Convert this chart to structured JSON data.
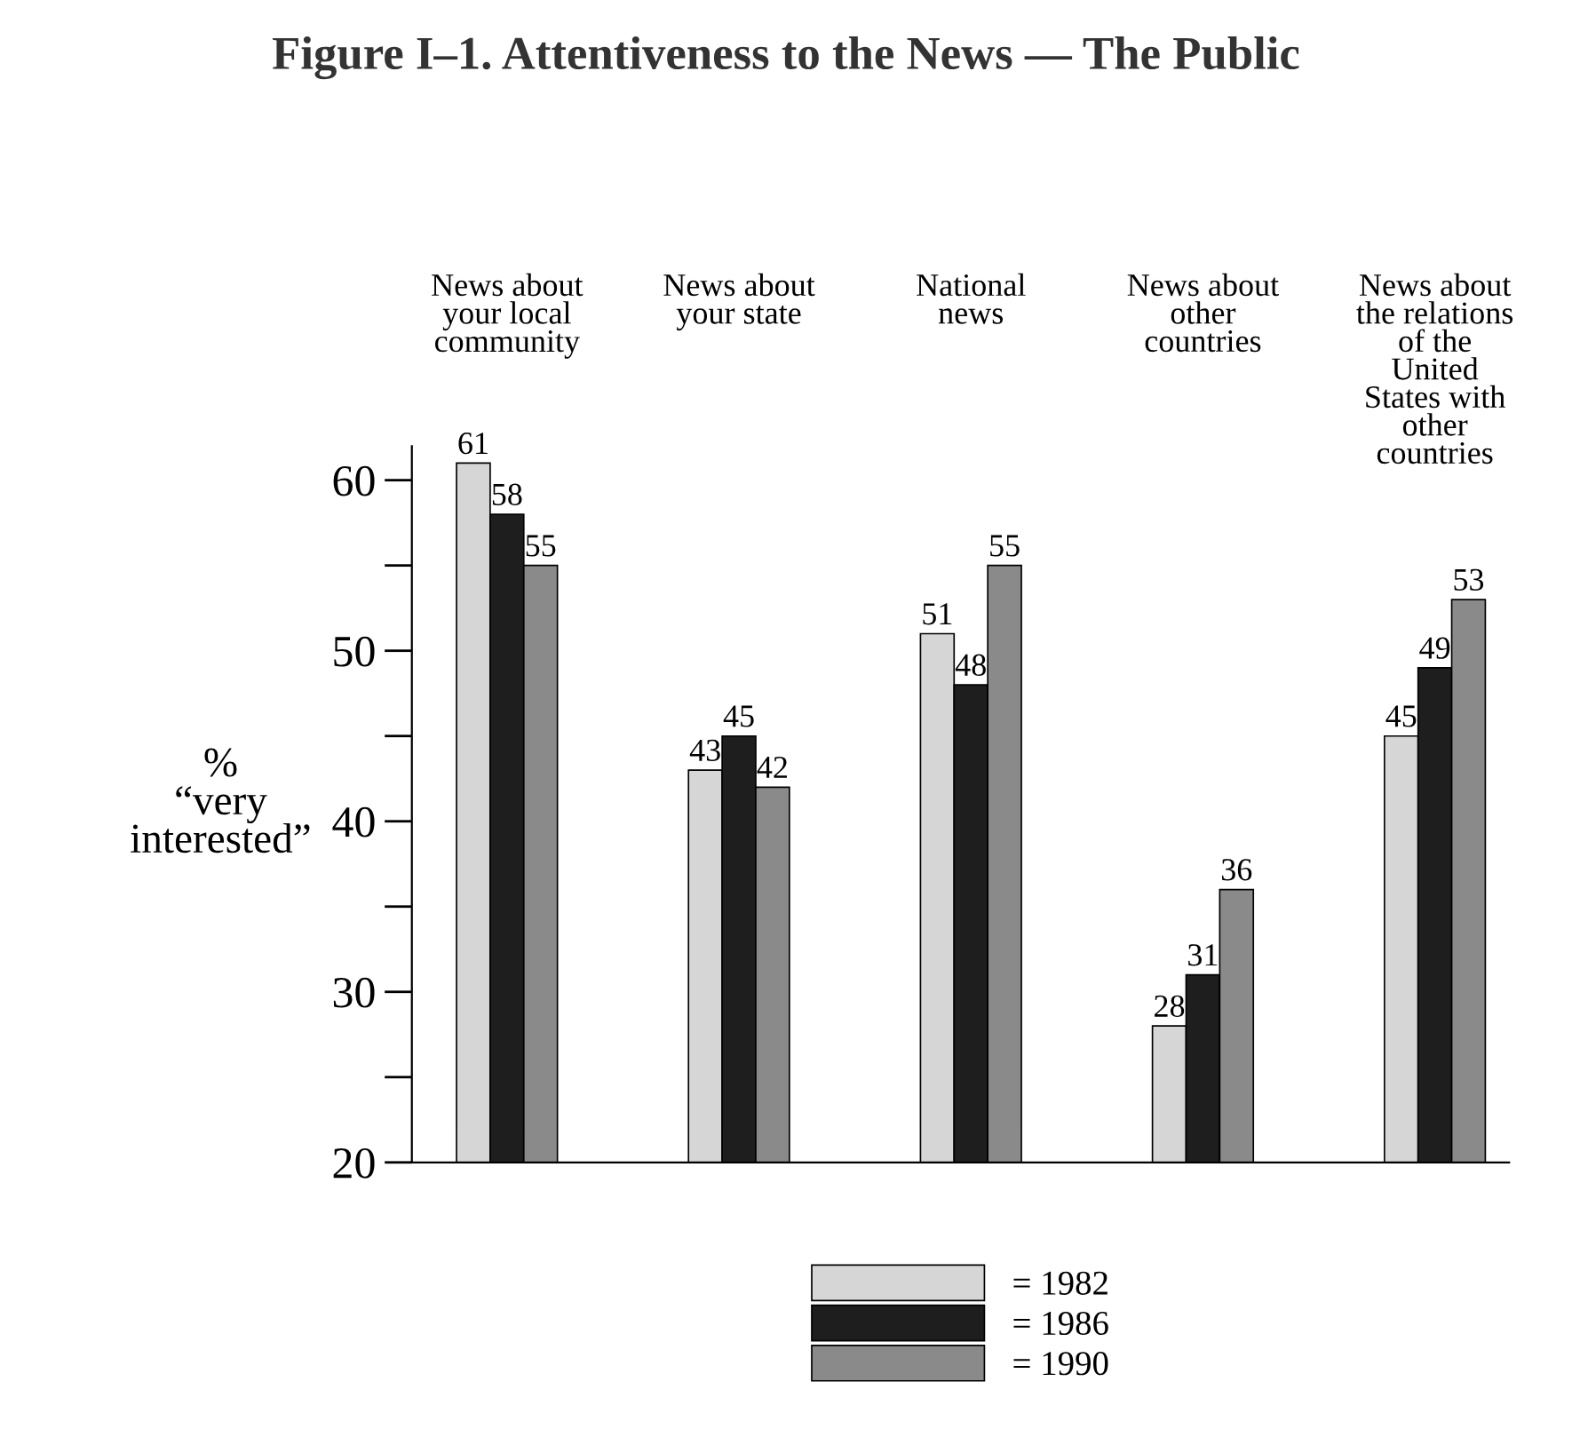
{
  "chart_data": {
    "type": "bar",
    "title": "Figure I–1. Attentiveness to the News — The Public",
    "ylabel": "%\n“very\ninterested”",
    "categories": [
      "News about\nyour local\ncommunity",
      "News about\nyour state",
      "National\nnews",
      "News about\nother\ncountries",
      "News about\nthe relations\nof the\nUnited\nStates with\nother\ncountries"
    ],
    "series": [
      {
        "name": "= 1982",
        "color": "#d6d6d6",
        "values": [
          61,
          43,
          51,
          28,
          45
        ]
      },
      {
        "name": "= 1986",
        "color": "#1e1e1e",
        "values": [
          58,
          45,
          48,
          31,
          49
        ]
      },
      {
        "name": "= 1990",
        "color": "#8a8a8a",
        "values": [
          55,
          42,
          55,
          36,
          53
        ]
      }
    ],
    "ylim": [
      20,
      62
    ],
    "yticks": [
      20,
      {
        "value": 25,
        "label": null
      },
      30,
      {
        "value": 35,
        "label": null
      },
      40,
      {
        "value": 45,
        "label": null
      },
      50,
      {
        "value": 55,
        "label": null
      },
      60
    ],
    "data_labels": true,
    "grid": false,
    "legend": "bottom"
  }
}
